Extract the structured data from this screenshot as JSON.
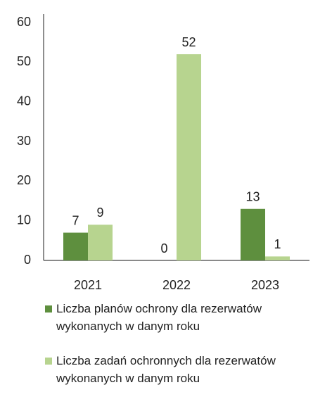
{
  "chart_data": {
    "type": "bar",
    "categories": [
      "2021",
      "2022",
      "2023"
    ],
    "series": [
      {
        "name": "Liczba planów ochrony dla rezerwatów wykonanych w danym roku",
        "color": "#5e8f3e",
        "values": [
          7,
          0,
          13
        ]
      },
      {
        "name": "Liczba zadań ochronnych dla rezerwatów wykonanych w danym roku",
        "color": "#b7d48f",
        "values": [
          9,
          52,
          1
        ]
      }
    ],
    "ylim": [
      0,
      60
    ],
    "yticks": [
      0,
      10,
      20,
      30,
      40,
      50,
      60
    ],
    "grid": false,
    "legend": "bottom"
  }
}
